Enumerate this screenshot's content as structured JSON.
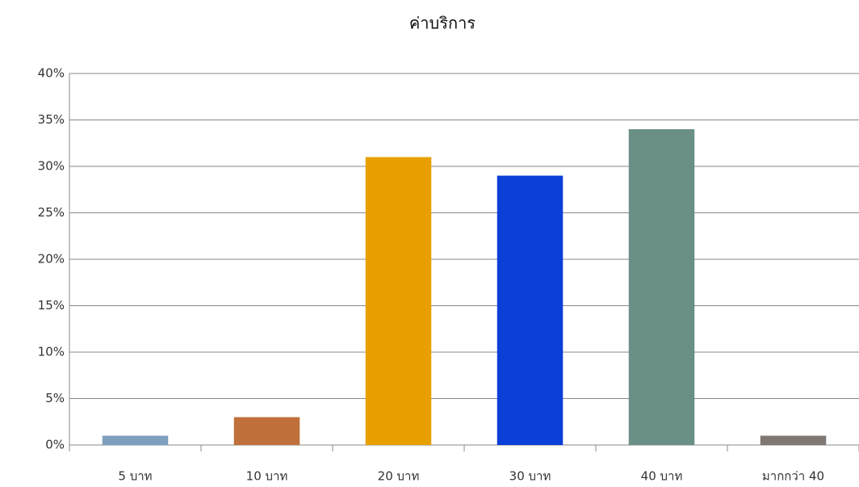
{
  "chart_data": {
    "type": "bar",
    "title": "ค่าบริการ",
    "categories": [
      "5 บาท",
      "10 บาท",
      "20 บาท",
      "30 บาท",
      "40 บาท",
      "มากกว่า 40"
    ],
    "values": [
      1,
      3,
      31,
      29,
      34,
      1
    ],
    "colors": [
      "#7f9fbf",
      "#c0703a",
      "#e8a000",
      "#0a3fd8",
      "#6a8f86",
      "#7f7772"
    ],
    "ylim": [
      0,
      40
    ],
    "yticks": [
      {
        "value": 0,
        "label": "0%"
      },
      {
        "value": 5,
        "label": "5%"
      },
      {
        "value": 10,
        "label": "10%"
      },
      {
        "value": 15,
        "label": "15%"
      },
      {
        "value": 20,
        "label": "20%"
      },
      {
        "value": 25,
        "label": "25%"
      },
      {
        "value": 30,
        "label": "30%"
      },
      {
        "value": 35,
        "label": "35%"
      },
      {
        "value": 40,
        "label": "40%"
      }
    ],
    "grid": true
  }
}
